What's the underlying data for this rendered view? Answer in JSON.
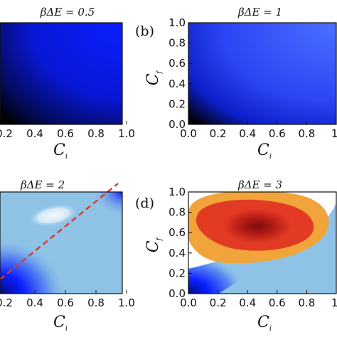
{
  "chart_data": [
    {
      "type": "heatmap",
      "title": "βΔE = 0.5",
      "xlabel": "C",
      "xlabel_sub": "i",
      "x_ticks": [
        "0.2",
        "0.4",
        "0.6",
        "0.8",
        "1.0"
      ],
      "xlim": [
        0.0,
        1.0
      ],
      "ylim": [
        0.0,
        1.0
      ],
      "colors": {
        "low": "#000000",
        "high": "#0a1fff"
      }
    },
    {
      "type": "heatmap",
      "panel_label": "(b)",
      "title": "βΔE = 1",
      "xlabel": "C",
      "xlabel_sub": "i",
      "ylabel": "C",
      "ylabel_sub": "f",
      "x_ticks": [
        "0.0",
        "0.2",
        "0.4",
        "0.6",
        "0.8",
        "1."
      ],
      "y_ticks": [
        "0.0",
        "0.2",
        "0.4",
        "0.6",
        "0.8",
        "1.0"
      ],
      "xlim": [
        0.0,
        1.0
      ],
      "ylim": [
        0.0,
        1.0
      ],
      "colors": {
        "low": "#000000",
        "high": "#3a5cff"
      }
    },
    {
      "type": "heatmap",
      "title": "βΔE = 2",
      "xlabel": "C",
      "xlabel_sub": "i",
      "x_ticks": [
        "0.2",
        "0.4",
        "0.6",
        "0.8",
        "1.0"
      ],
      "xlim": [
        0.0,
        1.0
      ],
      "ylim": [
        0.0,
        1.0
      ],
      "diagonal_line": {
        "style": "dashed",
        "color": "#d63a2a",
        "from": [
          0.0,
          0.0
        ],
        "to": [
          1.0,
          1.0
        ]
      },
      "colors": {
        "bg": "#8fc3e6",
        "light": "#e8f3fb",
        "dark": "#0a1fff"
      }
    },
    {
      "type": "heatmap",
      "panel_label": "(d)",
      "title": "βΔE = 3",
      "xlabel": "C",
      "xlabel_sub": "i",
      "ylabel": "C",
      "ylabel_sub": "f",
      "x_ticks": [
        "0.0",
        "0.2",
        "0.4",
        "0.6",
        "0.8",
        "1."
      ],
      "y_ticks": [
        "0.0",
        "0.2",
        "0.4",
        "0.6",
        "0.8",
        "1.0"
      ],
      "xlim": [
        0.0,
        1.0
      ],
      "ylim": [
        0.0,
        1.0
      ],
      "colors": {
        "bg": "#8fc3e6",
        "white": "#ffffff",
        "orange": "#f0a43a",
        "red": "#e23a23",
        "darkred": "#8a0f0f",
        "blue": "#0a1fff"
      }
    }
  ]
}
